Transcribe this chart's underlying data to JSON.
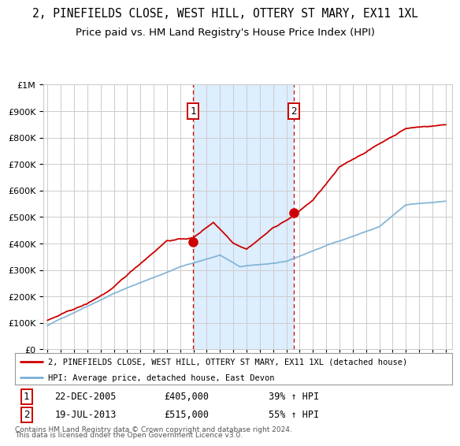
{
  "title": "2, PINEFIELDS CLOSE, WEST HILL, OTTERY ST MARY, EX11 1XL",
  "subtitle": "Price paid vs. HM Land Registry's House Price Index (HPI)",
  "legend_line1": "2, PINEFIELDS CLOSE, WEST HILL, OTTERY ST MARY, EX11 1XL (detached house)",
  "legend_line2": "HPI: Average price, detached house, East Devon",
  "footnote1": "Contains HM Land Registry data © Crown copyright and database right 2024.",
  "footnote2": "This data is licensed under the Open Government Licence v3.0.",
  "sale1_label": "1",
  "sale1_date": "22-DEC-2005",
  "sale1_price": "£405,000",
  "sale1_hpi": "39% ↑ HPI",
  "sale1_year": 2005.97,
  "sale1_value": 405000,
  "sale2_label": "2",
  "sale2_date": "19-JUL-2013",
  "sale2_price": "£515,000",
  "sale2_hpi": "55% ↑ HPI",
  "sale2_year": 2013.54,
  "sale2_value": 515000,
  "red_color": "#cc0000",
  "blue_color": "#7aafd4",
  "shade_color": "#ddeeff",
  "background_color": "#ffffff",
  "grid_color": "#cccccc",
  "title_fontsize": 10.5,
  "subtitle_fontsize": 9.5,
  "ylim": [
    0,
    1000000
  ],
  "xlim": [
    1994.7,
    2025.5
  ]
}
